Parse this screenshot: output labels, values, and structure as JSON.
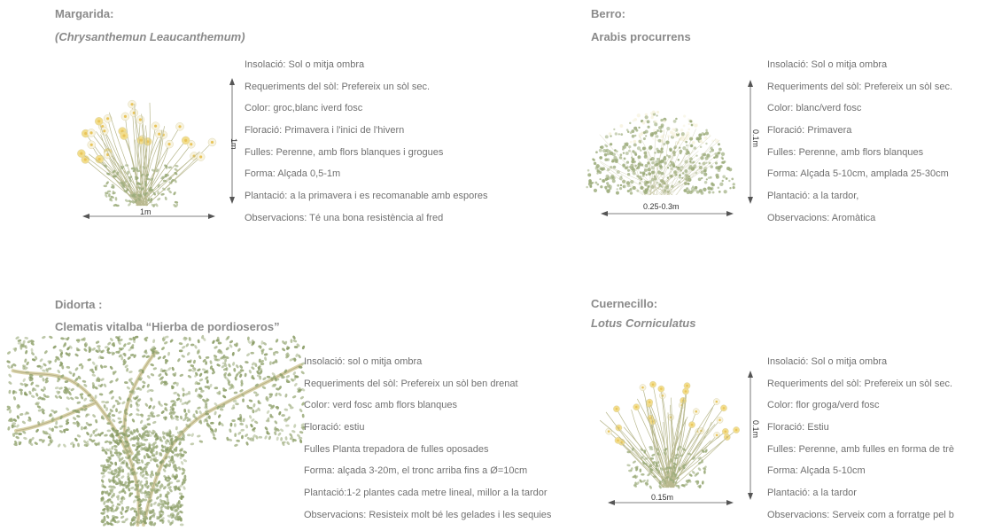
{
  "plants": [
    {
      "name": "Margarida:",
      "scientific": "(Chrysanthemun Leaucanthemum)",
      "height_label": "1m",
      "width_label": "1m",
      "properties": [
        "Insolació: Sol o mitja ombra",
        "Requeriments del sòl: Prefereix un sòl sec.",
        "Color: groc,blanc iverd fosc",
        "Floració: Primavera i l'inici de l'hivern",
        "Fulles: Perenne, amb flors blanques i grogues",
        "Forma: Alçada 0,5-1m",
        "Plantació: a la primavera i es recomanable amb espores",
        "Observacions:  Té una bona resistència al fred"
      ]
    },
    {
      "name": "Berro:",
      "scientific": "Arabis procurrens",
      "height_label": "0.1m",
      "width_label": "0.25-0.3m",
      "properties": [
        "Insolació: Sol o mitja ombra",
        "Requeriments del sòl: Prefereix un sòl sec.",
        "Color: blanc/verd fosc",
        "Floració: Primavera",
        "Fulles: Perenne, amb flors blanques",
        "Forma: Alçada 5-10cm, amplada 25-30cm",
        "Plantació: a la tardor,",
        "Observacions: Aromàtica"
      ]
    },
    {
      "name": "Didorta :",
      "scientific": "Clematis vitalba “Hierba de pordioseros”",
      "properties": [
        "Insolació: sol o mitja ombra",
        "Requeriments del sòl: Prefereix un sòl ben drenat",
        "Color: verd fosc amb flors blanques",
        "Floració: estiu",
        "Fulles Planta trepadora de fulles oposades",
        "Forma: alçada 3-20m, el tronc arriba fins a Ø=10cm",
        "Plantació:1-2 plantes cada metre lineal,  millor a la tardor",
        "Observacions: Resisteix molt bé les gelades i les sequies"
      ]
    },
    {
      "name": "Cuernecillo:",
      "scientific": "Lotus Corniculatus",
      "height_label": "0.1m",
      "width_label": "0.15m",
      "properties": [
        "Insolació: Sol o mitja ombra",
        "Requeriments del sòl: Prefereix un sòl sec.",
        "Color: flor groga/verd fosc",
        "Floració: Estiu",
        "Fulles: Perenne, amb fulles en forma de trè",
        "Forma: Alçada 5-10cm",
        "Plantació: a la tardor",
        "Observacions:  Serveix com a forratge pel b"
      ]
    }
  ],
  "colors": {
    "foliage": "#9bab7a",
    "flower_white": "#f7f3df",
    "flower_yellow": "#f2dd8c",
    "stem": "#b9b98f"
  }
}
